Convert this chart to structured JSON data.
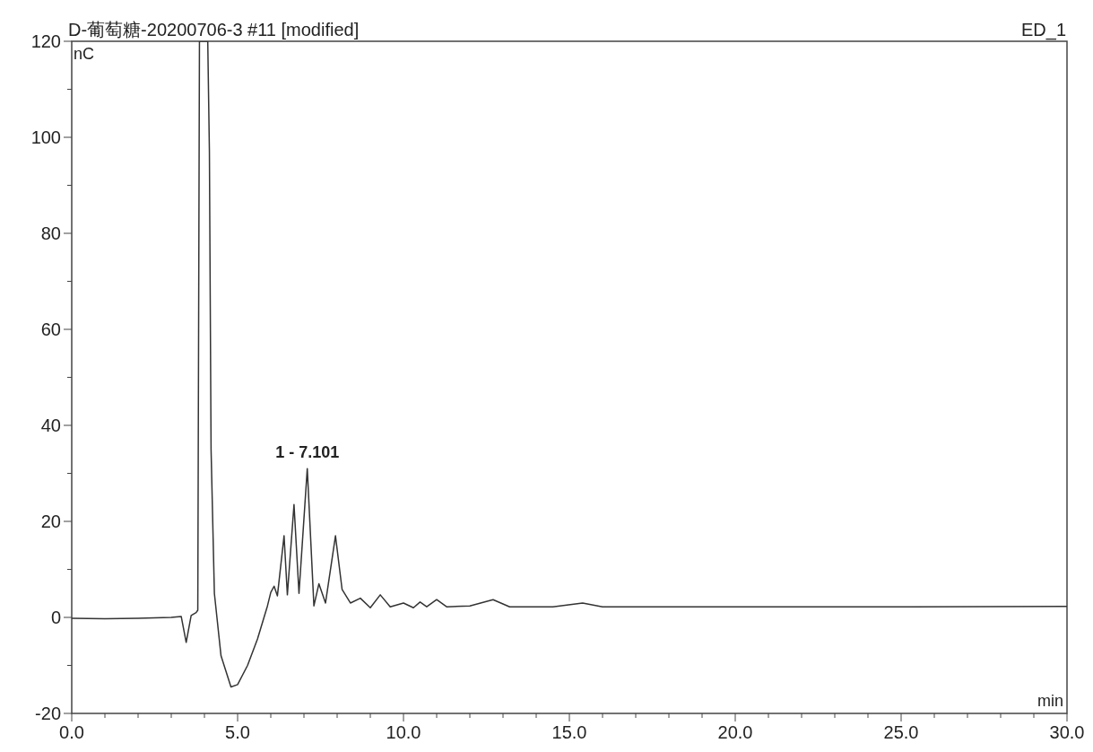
{
  "chart_data": {
    "type": "line",
    "title": "D-葡萄糖-20200706-3 #11 [modified]",
    "xlabel": "min",
    "ylabel": "nC",
    "annotations": [
      "ED_1",
      {
        "text": "1 - 7.101",
        "x": 7.101,
        "y": 31
      }
    ],
    "x": [
      0,
      1,
      2,
      3,
      3.3,
      3.45,
      3.6,
      3.75,
      3.8,
      3.85,
      4.1,
      4.15,
      4.2,
      4.3,
      4.5,
      4.8,
      5.0,
      5.3,
      5.6,
      5.9,
      6.0,
      6.1,
      6.2,
      6.4,
      6.5,
      6.7,
      6.85,
      7.1,
      7.3,
      7.45,
      7.65,
      7.95,
      8.15,
      8.4,
      8.7,
      9.0,
      9.3,
      9.6,
      10.0,
      10.3,
      10.5,
      10.7,
      11.0,
      11.3,
      12.0,
      12.7,
      13.2,
      14.5,
      15.4,
      16.0,
      20.0,
      25.0,
      30.0
    ],
    "series": [
      {
        "color": "#333333",
        "values": [
          -0.2,
          -0.3,
          -0.2,
          0.0,
          0.2,
          -5.2,
          0.4,
          1,
          1.5,
          120,
          120,
          97,
          35,
          5,
          -8,
          -14.5,
          -14,
          -10,
          -4.5,
          2.4,
          5.2,
          6.5,
          4.5,
          17,
          4.7,
          23.5,
          5,
          31,
          2.4,
          7,
          3,
          17,
          5.8,
          3,
          4,
          2,
          4.7,
          2.2,
          3,
          2,
          3.2,
          2.2,
          3.7,
          2.2,
          2.4,
          3.7,
          2.2,
          2.2,
          3,
          2.2,
          2.2,
          2.2,
          2.3
        ]
      }
    ],
    "xlim": [
      0,
      30
    ],
    "ylim": [
      -20,
      120
    ],
    "xticks": [
      {
        "value": 0,
        "label": "0.0"
      },
      {
        "value": 1,
        "label": null
      },
      {
        "value": 2,
        "label": null
      },
      {
        "value": 3,
        "label": null
      },
      {
        "value": 4,
        "label": null
      },
      {
        "value": 5,
        "label": "5.0"
      },
      {
        "value": 6,
        "label": null
      },
      {
        "value": 7,
        "label": null
      },
      {
        "value": 8,
        "label": null
      },
      {
        "value": 9,
        "label": null
      },
      {
        "value": 10,
        "label": "10.0"
      },
      {
        "value": 11,
        "label": null
      },
      {
        "value": 12,
        "label": null
      },
      {
        "value": 13,
        "label": null
      },
      {
        "value": 14,
        "label": null
      },
      {
        "value": 15,
        "label": "15.0"
      },
      {
        "value": 16,
        "label": null
      },
      {
        "value": 17,
        "label": null
      },
      {
        "value": 18,
        "label": null
      },
      {
        "value": 19,
        "label": null
      },
      {
        "value": 20,
        "label": "20.0"
      },
      {
        "value": 21,
        "label": null
      },
      {
        "value": 22,
        "label": null
      },
      {
        "value": 23,
        "label": null
      },
      {
        "value": 24,
        "label": null
      },
      {
        "value": 25,
        "label": "25.0"
      },
      {
        "value": 26,
        "label": null
      },
      {
        "value": 27,
        "label": null
      },
      {
        "value": 28,
        "label": null
      },
      {
        "value": 29,
        "label": null
      },
      {
        "value": 30,
        "label": "30.0"
      }
    ],
    "yticks": [
      -20,
      {
        "value": -10,
        "label": null
      },
      0,
      {
        "value": 10,
        "label": null
      },
      20,
      {
        "value": 30,
        "label": null
      },
      40,
      {
        "value": 50,
        "label": null
      },
      60,
      {
        "value": 70,
        "label": null
      },
      80,
      {
        "value": 90,
        "label": null
      },
      100,
      {
        "value": 110,
        "label": null
      },
      120
    ],
    "grid": false,
    "marker": "none",
    "line_style": "solid"
  }
}
